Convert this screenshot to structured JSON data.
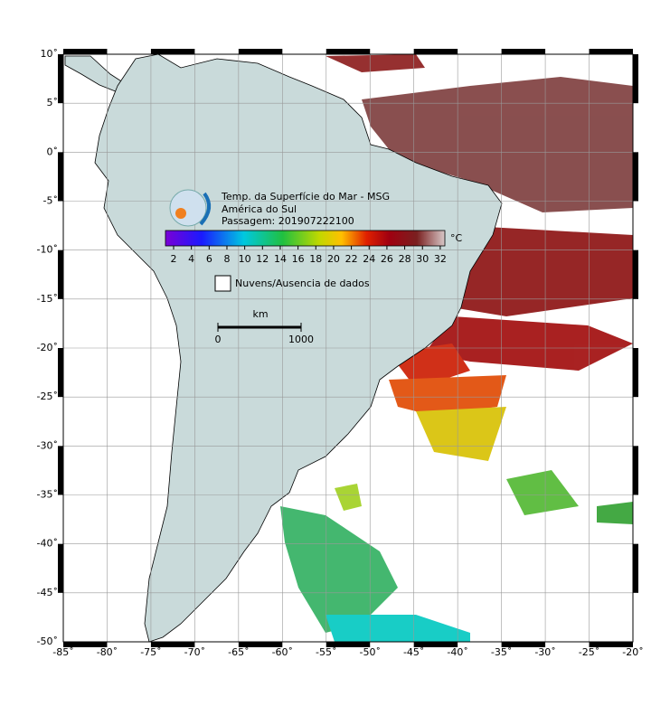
{
  "map": {
    "title_lines": [
      "Temp. da Superfície do Mar - MSG",
      "América do Sul",
      "Passagem: 201907222100"
    ],
    "xticks": [
      {
        "value": -85,
        "label": "-85˚"
      },
      {
        "value": -80,
        "label": "-80˚"
      },
      {
        "value": -75,
        "label": "-75˚"
      },
      {
        "value": -70,
        "label": "-70˚"
      },
      {
        "value": -65,
        "label": "-65˚"
      },
      {
        "value": -60,
        "label": "-60˚"
      },
      {
        "value": -55,
        "label": "-55˚"
      },
      {
        "value": -50,
        "label": "-50˚"
      },
      {
        "value": -45,
        "label": "-45˚"
      },
      {
        "value": -40,
        "label": "-40˚"
      },
      {
        "value": -35,
        "label": "-35˚"
      },
      {
        "value": -30,
        "label": "-30˚"
      },
      {
        "value": -25,
        "label": "-25˚"
      },
      {
        "value": -20,
        "label": "-20˚"
      }
    ],
    "yticks": [
      {
        "value": 10,
        "label": "10˚"
      },
      {
        "value": 5,
        "label": "5˚"
      },
      {
        "value": 0,
        "label": "0˚"
      },
      {
        "value": -5,
        "label": "-5˚"
      },
      {
        "value": -10,
        "label": "-10˚"
      },
      {
        "value": -15,
        "label": "-15˚"
      },
      {
        "value": -20,
        "label": "-20˚"
      },
      {
        "value": -25,
        "label": "-25˚"
      },
      {
        "value": -30,
        "label": "-30˚"
      },
      {
        "value": -35,
        "label": "-35˚"
      },
      {
        "value": -40,
        "label": "-40˚"
      },
      {
        "value": -45,
        "label": "-45˚"
      },
      {
        "value": -50,
        "label": "-50˚"
      }
    ],
    "colorbar": {
      "ticks": [
        2,
        4,
        6,
        8,
        10,
        12,
        14,
        16,
        18,
        20,
        22,
        24,
        26,
        28,
        30,
        32
      ],
      "unit": "°C"
    },
    "legend": "Nuvens/Ausencia de dados",
    "scale": {
      "unit": "km",
      "ticks": [
        0,
        1000
      ]
    }
  }
}
